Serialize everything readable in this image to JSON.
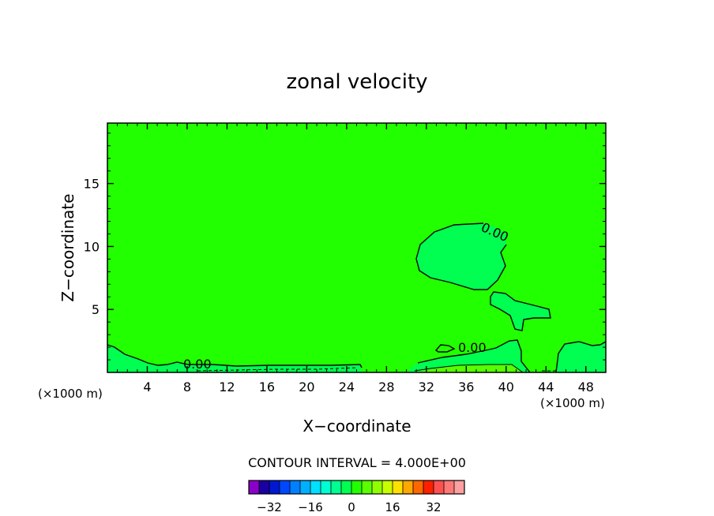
{
  "chart_data": {
    "type": "contour",
    "title": "zonal velocity",
    "xlabel": "X−coordinate",
    "ylabel": "Z−coordinate",
    "x_unit_left": "(×1000 m)",
    "x_unit_right": "(×1000 m)",
    "xlim": [
      0,
      50
    ],
    "ylim": [
      0,
      19.8
    ],
    "x_ticks": [
      4,
      8,
      12,
      16,
      20,
      24,
      28,
      32,
      36,
      40,
      44,
      48
    ],
    "y_ticks": [
      5,
      10,
      15
    ],
    "contour_interval_text": "CONTOUR INTERVAL = 4.000E+00",
    "contour_labels": [
      "0.00",
      "0.00",
      "0.00"
    ],
    "background_color": "#22ff00",
    "colorbar": {
      "levels": [
        -36,
        -32,
        -28,
        -24,
        -20,
        -16,
        -12,
        -8,
        -4,
        0,
        4,
        8,
        12,
        16,
        20,
        24,
        28,
        32,
        36
      ],
      "colors": [
        "#8b00c8",
        "#1a00a0",
        "#0018d0",
        "#0048ff",
        "#0080ff",
        "#00b0ff",
        "#00e0ff",
        "#00ffd0",
        "#00ff90",
        "#00ff50",
        "#22ff00",
        "#5aff00",
        "#90ff00",
        "#c8ff00",
        "#ffe000",
        "#ffa800",
        "#ff6800",
        "#ff2000",
        "#ff5050",
        "#ff7878",
        "#ffa0a0"
      ],
      "tick_labels": [
        "−32",
        "−16",
        "0",
        "16",
        "32"
      ],
      "tick_values": [
        -32,
        -16,
        0,
        16,
        32
      ]
    }
  }
}
